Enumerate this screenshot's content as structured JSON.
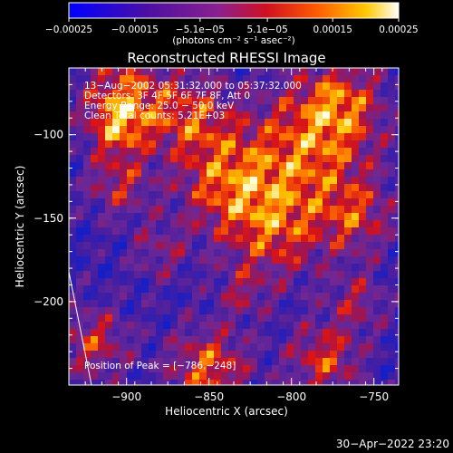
{
  "chart_data": {
    "type": "heatmap",
    "title": "Reconstructed RHESSI Image",
    "xlabel": "Heliocentric X (arcsec)",
    "ylabel": "Heliocentric Y (arcsec)",
    "xlim": [
      -935,
      -735
    ],
    "ylim": [
      -250,
      -60
    ],
    "x_ticks": [
      {
        "value": -900,
        "label": "−900"
      },
      {
        "value": -850,
        "label": "−850"
      },
      {
        "value": -800,
        "label": "−800"
      },
      {
        "value": -750,
        "label": "−750"
      }
    ],
    "y_ticks": [
      {
        "value": -100,
        "label": "−100"
      },
      {
        "value": -150,
        "label": "−150"
      },
      {
        "value": -200,
        "label": "−200"
      }
    ],
    "colorbar": {
      "range": [
        -0.00025,
        0.00025
      ],
      "tick_labels": [
        "−0.00025",
        "−0.00015",
        "−5.1e−05",
        "5.1e−05",
        "0.00015",
        "0.00025"
      ],
      "tick_values": [
        -0.00025,
        -0.00015,
        -5.1e-05,
        5.1e-05,
        0.00015,
        0.00025
      ],
      "unit_label": "(photons cm⁻² s⁻¹ asec⁻²)"
    },
    "annotations": [
      "13−Aug−2002 05:31:32.000 to 05:37:32.000",
      "Detectors: 3F 4F 5F 6F 7F 8F, Att 0",
      "Energy Range: 25.0 − 50.0 keV",
      "Clean    Total counts: 5.21E+03"
    ],
    "peak_label": "Position of Peak = [−786,−248]",
    "peak_position": [
      -786,
      -248
    ],
    "colors": [
      "#0000ff",
      "#5a1a9e",
      "#7a2a9a",
      "#aa1a5a",
      "#dd1010",
      "#ff6a00",
      "#ffc000",
      "#ffffff"
    ]
  },
  "footer": {
    "timestamp": "30−Apr−2022 23:20"
  }
}
